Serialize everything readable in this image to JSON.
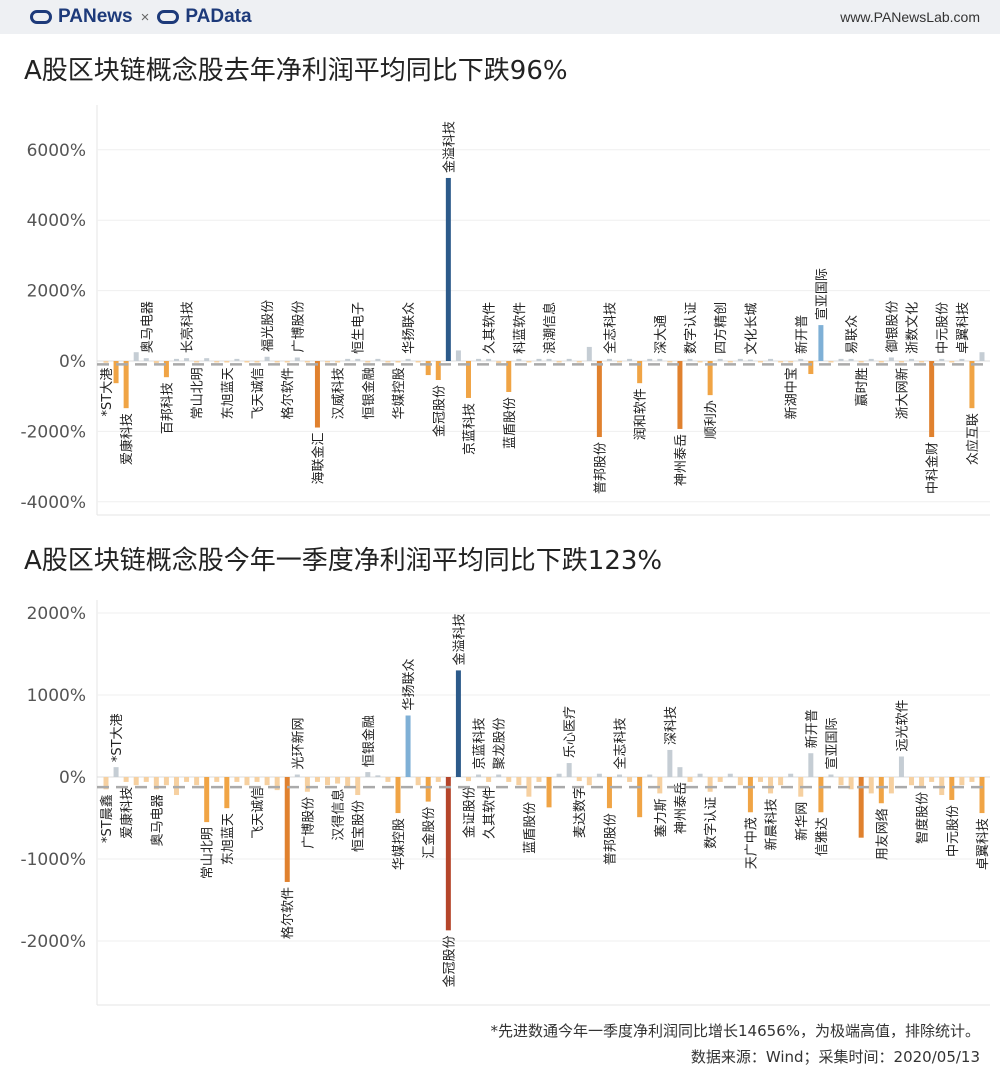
{
  "header": {
    "brand_left": "PANews",
    "separator": "×",
    "brand_right": "PAData",
    "site": "www.PANewsLab.com"
  },
  "watermark": [
    "PANews",
    "PAData"
  ],
  "footer": {
    "note": "*先进数通今年一季度净利润同比增长14656%，为极端高值，排除统计。",
    "source": "数据来源：Wind；采集时间：2020/05/13"
  },
  "colors": {
    "positive_large": "#2c5a8a",
    "positive_mid": "#7fb0d6",
    "positive_small": "#c5cdd4",
    "negative_small": "#f6d0a0",
    "negative_mid": "#f0a445",
    "negative_large": "#e0812e",
    "negative_extreme": "#b5452a"
  },
  "chart_data": [
    {
      "type": "bar",
      "title": "A股区块链概念股去年净利润平均同比下跌96%",
      "ylim": [
        -4000,
        6000
      ],
      "yticks": [
        "-4000%",
        "-2000%",
        "0%",
        "2000%",
        "4000%",
        "6000%"
      ],
      "ytick_values": [
        -4000,
        -2000,
        0,
        2000,
        4000,
        6000
      ],
      "average": -96,
      "grid": true,
      "bars": [
        {
          "name": "*ST大港",
          "value": -50
        },
        {
          "name": "",
          "value": -630
        },
        {
          "name": "爱康科技",
          "value": -1340
        },
        {
          "name": "",
          "value": 250
        },
        {
          "name": "奥马电器",
          "value": 80
        },
        {
          "name": "",
          "value": -60
        },
        {
          "name": "百邦科技",
          "value": -460
        },
        {
          "name": "",
          "value": 60
        },
        {
          "name": "长亮科技",
          "value": 80
        },
        {
          "name": "常山北明",
          "value": -40
        },
        {
          "name": "",
          "value": 80
        },
        {
          "name": "",
          "value": -40
        },
        {
          "name": "东旭蓝天",
          "value": -40
        },
        {
          "name": "",
          "value": 60
        },
        {
          "name": "",
          "value": -40
        },
        {
          "name": "飞天诚信",
          "value": -40
        },
        {
          "name": "福光股份",
          "value": 120
        },
        {
          "name": "",
          "value": -40
        },
        {
          "name": "格尔软件",
          "value": -40
        },
        {
          "name": "广博股份",
          "value": 100
        },
        {
          "name": "",
          "value": -40
        },
        {
          "name": "海联金汇",
          "value": -1890
        },
        {
          "name": "",
          "value": -40
        },
        {
          "name": "汉威科技",
          "value": -40
        },
        {
          "name": "",
          "value": 60
        },
        {
          "name": "恒生电子",
          "value": 60
        },
        {
          "name": "恒银金融",
          "value": -40
        },
        {
          "name": "",
          "value": 60
        },
        {
          "name": "",
          "value": -40
        },
        {
          "name": "华媒控股",
          "value": -40
        },
        {
          "name": "华扬联众",
          "value": 60
        },
        {
          "name": "",
          "value": -40
        },
        {
          "name": "",
          "value": -400
        },
        {
          "name": "金冠股份",
          "value": -540
        },
        {
          "name": "金溢科技",
          "value": 5200
        },
        {
          "name": "",
          "value": 300
        },
        {
          "name": "京蓝科技",
          "value": -1050
        },
        {
          "name": "",
          "value": 60
        },
        {
          "name": "久其软件",
          "value": 60
        },
        {
          "name": "",
          "value": -60
        },
        {
          "name": "蓝盾股份",
          "value": -880
        },
        {
          "name": "科蓝软件",
          "value": 60
        },
        {
          "name": "",
          "value": -40
        },
        {
          "name": "",
          "value": 60
        },
        {
          "name": "浪潮信息",
          "value": 60
        },
        {
          "name": "",
          "value": -40
        },
        {
          "name": "",
          "value": 60
        },
        {
          "name": "",
          "value": -40
        },
        {
          "name": "",
          "value": 400
        },
        {
          "name": "普邦股份",
          "value": -2160
        },
        {
          "name": "全志科技",
          "value": 60
        },
        {
          "name": "",
          "value": -40
        },
        {
          "name": "",
          "value": 60
        },
        {
          "name": "润和软件",
          "value": -630
        },
        {
          "name": "",
          "value": 60
        },
        {
          "name": "深大通",
          "value": 60
        },
        {
          "name": "",
          "value": -40
        },
        {
          "name": "神州泰岳",
          "value": -1930
        },
        {
          "name": "数字认证",
          "value": 60
        },
        {
          "name": "",
          "value": -40
        },
        {
          "name": "顺利办",
          "value": -970
        },
        {
          "name": "四方精创",
          "value": 60
        },
        {
          "name": "",
          "value": -40
        },
        {
          "name": "",
          "value": 60
        },
        {
          "name": "文化长城",
          "value": 40
        },
        {
          "name": "",
          "value": -40
        },
        {
          "name": "",
          "value": 60
        },
        {
          "name": "",
          "value": -40
        },
        {
          "name": "新湖中宝",
          "value": -40
        },
        {
          "name": "新开普",
          "value": 60
        },
        {
          "name": "",
          "value": -370
        },
        {
          "name": "宣亚国际",
          "value": 1020
        },
        {
          "name": "",
          "value": -40
        },
        {
          "name": "",
          "value": 60
        },
        {
          "name": "易联众",
          "value": 60
        },
        {
          "name": "赢时胜",
          "value": -40
        },
        {
          "name": "",
          "value": 60
        },
        {
          "name": "",
          "value": -40
        },
        {
          "name": "御银股份",
          "value": 100
        },
        {
          "name": "浙大网新",
          "value": -40
        },
        {
          "name": "浙数文化",
          "value": 60
        },
        {
          "name": "",
          "value": -40
        },
        {
          "name": "中科金财",
          "value": -2160
        },
        {
          "name": "中元股份",
          "value": 60
        },
        {
          "name": "",
          "value": -40
        },
        {
          "name": "卓翼科技",
          "value": 60
        },
        {
          "name": "众应互联",
          "value": -1340
        },
        {
          "name": "",
          "value": 250
        }
      ]
    },
    {
      "type": "bar",
      "title": "A股区块链概念股今年一季度净利润平均同比下跌123%",
      "ylim": [
        -2000,
        2000
      ],
      "yticks": [
        "-2000%",
        "-1000%",
        "0%",
        "1000%",
        "2000%"
      ],
      "ytick_values": [
        -2000,
        -1000,
        0,
        1000,
        2000
      ],
      "average": -123,
      "grid": true,
      "bars": [
        {
          "name": "*ST晨鑫",
          "value": -150
        },
        {
          "name": "*ST大港",
          "value": 120
        },
        {
          "name": "爱康科技",
          "value": -60
        },
        {
          "name": "",
          "value": -100
        },
        {
          "name": "",
          "value": -60
        },
        {
          "name": "奥马电器",
          "value": -150
        },
        {
          "name": "",
          "value": -100
        },
        {
          "name": "",
          "value": -220
        },
        {
          "name": "",
          "value": -60
        },
        {
          "name": "",
          "value": -100
        },
        {
          "name": "常山北明",
          "value": -550
        },
        {
          "name": "",
          "value": -60
        },
        {
          "name": "东旭蓝天",
          "value": -380
        },
        {
          "name": "",
          "value": -60
        },
        {
          "name": "",
          "value": -100
        },
        {
          "name": "飞天诚信",
          "value": -60
        },
        {
          "name": "",
          "value": -100
        },
        {
          "name": "",
          "value": -160
        },
        {
          "name": "格尔软件",
          "value": -1280
        },
        {
          "name": "光环新网",
          "value": 30
        },
        {
          "name": "广博股份",
          "value": -180
        },
        {
          "name": "",
          "value": -60
        },
        {
          "name": "",
          "value": -100
        },
        {
          "name": "汉得信息",
          "value": -80
        },
        {
          "name": "",
          "value": -120
        },
        {
          "name": "恒宝股份",
          "value": -220
        },
        {
          "name": "恒银金融",
          "value": 60
        },
        {
          "name": "",
          "value": 20
        },
        {
          "name": "",
          "value": -60
        },
        {
          "name": "华媒控股",
          "value": -440
        },
        {
          "name": "华扬联众",
          "value": 750
        },
        {
          "name": "",
          "value": -100
        },
        {
          "name": "汇金股份",
          "value": -300
        },
        {
          "name": "",
          "value": -60
        },
        {
          "name": "金冠股份",
          "value": -1870
        },
        {
          "name": "金溢科技",
          "value": 1300
        },
        {
          "name": "金证股份",
          "value": -50
        },
        {
          "name": "京蓝科技",
          "value": 30
        },
        {
          "name": "久其软件",
          "value": -60
        },
        {
          "name": "聚龙股份",
          "value": 30
        },
        {
          "name": "",
          "value": -60
        },
        {
          "name": "",
          "value": -100
        },
        {
          "name": "蓝盾股份",
          "value": -240
        },
        {
          "name": "",
          "value": -60
        },
        {
          "name": "",
          "value": -370
        },
        {
          "name": "",
          "value": 40
        },
        {
          "name": "乐心医疗",
          "value": 170
        },
        {
          "name": "麦达数字",
          "value": -50
        },
        {
          "name": "",
          "value": -100
        },
        {
          "name": "",
          "value": 40
        },
        {
          "name": "普邦股份",
          "value": -380
        },
        {
          "name": "全志科技",
          "value": 30
        },
        {
          "name": "",
          "value": -60
        },
        {
          "name": "",
          "value": -490
        },
        {
          "name": "",
          "value": 30
        },
        {
          "name": "塞力斯",
          "value": -200
        },
        {
          "name": "深科技",
          "value": 330
        },
        {
          "name": "神州泰岳",
          "value": 120
        },
        {
          "name": "",
          "value": -60
        },
        {
          "name": "",
          "value": 40
        },
        {
          "name": "数字认证",
          "value": -180
        },
        {
          "name": "",
          "value": -60
        },
        {
          "name": "",
          "value": 40
        },
        {
          "name": "",
          "value": -100
        },
        {
          "name": "天广中茂",
          "value": -430
        },
        {
          "name": "",
          "value": -60
        },
        {
          "name": "新晨科技",
          "value": -200
        },
        {
          "name": "",
          "value": -100
        },
        {
          "name": "",
          "value": 40
        },
        {
          "name": "新华网",
          "value": -240
        },
        {
          "name": "新开普",
          "value": 290
        },
        {
          "name": "信雅达",
          "value": -430
        },
        {
          "name": "宣亚国际",
          "value": 30
        },
        {
          "name": "",
          "value": -100
        },
        {
          "name": "",
          "value": -150
        },
        {
          "name": "",
          "value": -740
        },
        {
          "name": "",
          "value": -200
        },
        {
          "name": "用友网络",
          "value": -320
        },
        {
          "name": "",
          "value": -200
        },
        {
          "name": "远光软件",
          "value": 250
        },
        {
          "name": "",
          "value": -100
        },
        {
          "name": "智度股份",
          "value": -120
        },
        {
          "name": "",
          "value": -60
        },
        {
          "name": "",
          "value": -220
        },
        {
          "name": "中元股份",
          "value": -280
        },
        {
          "name": "",
          "value": -100
        },
        {
          "name": "",
          "value": -60
        },
        {
          "name": "卓翼科技",
          "value": -440
        }
      ]
    }
  ]
}
